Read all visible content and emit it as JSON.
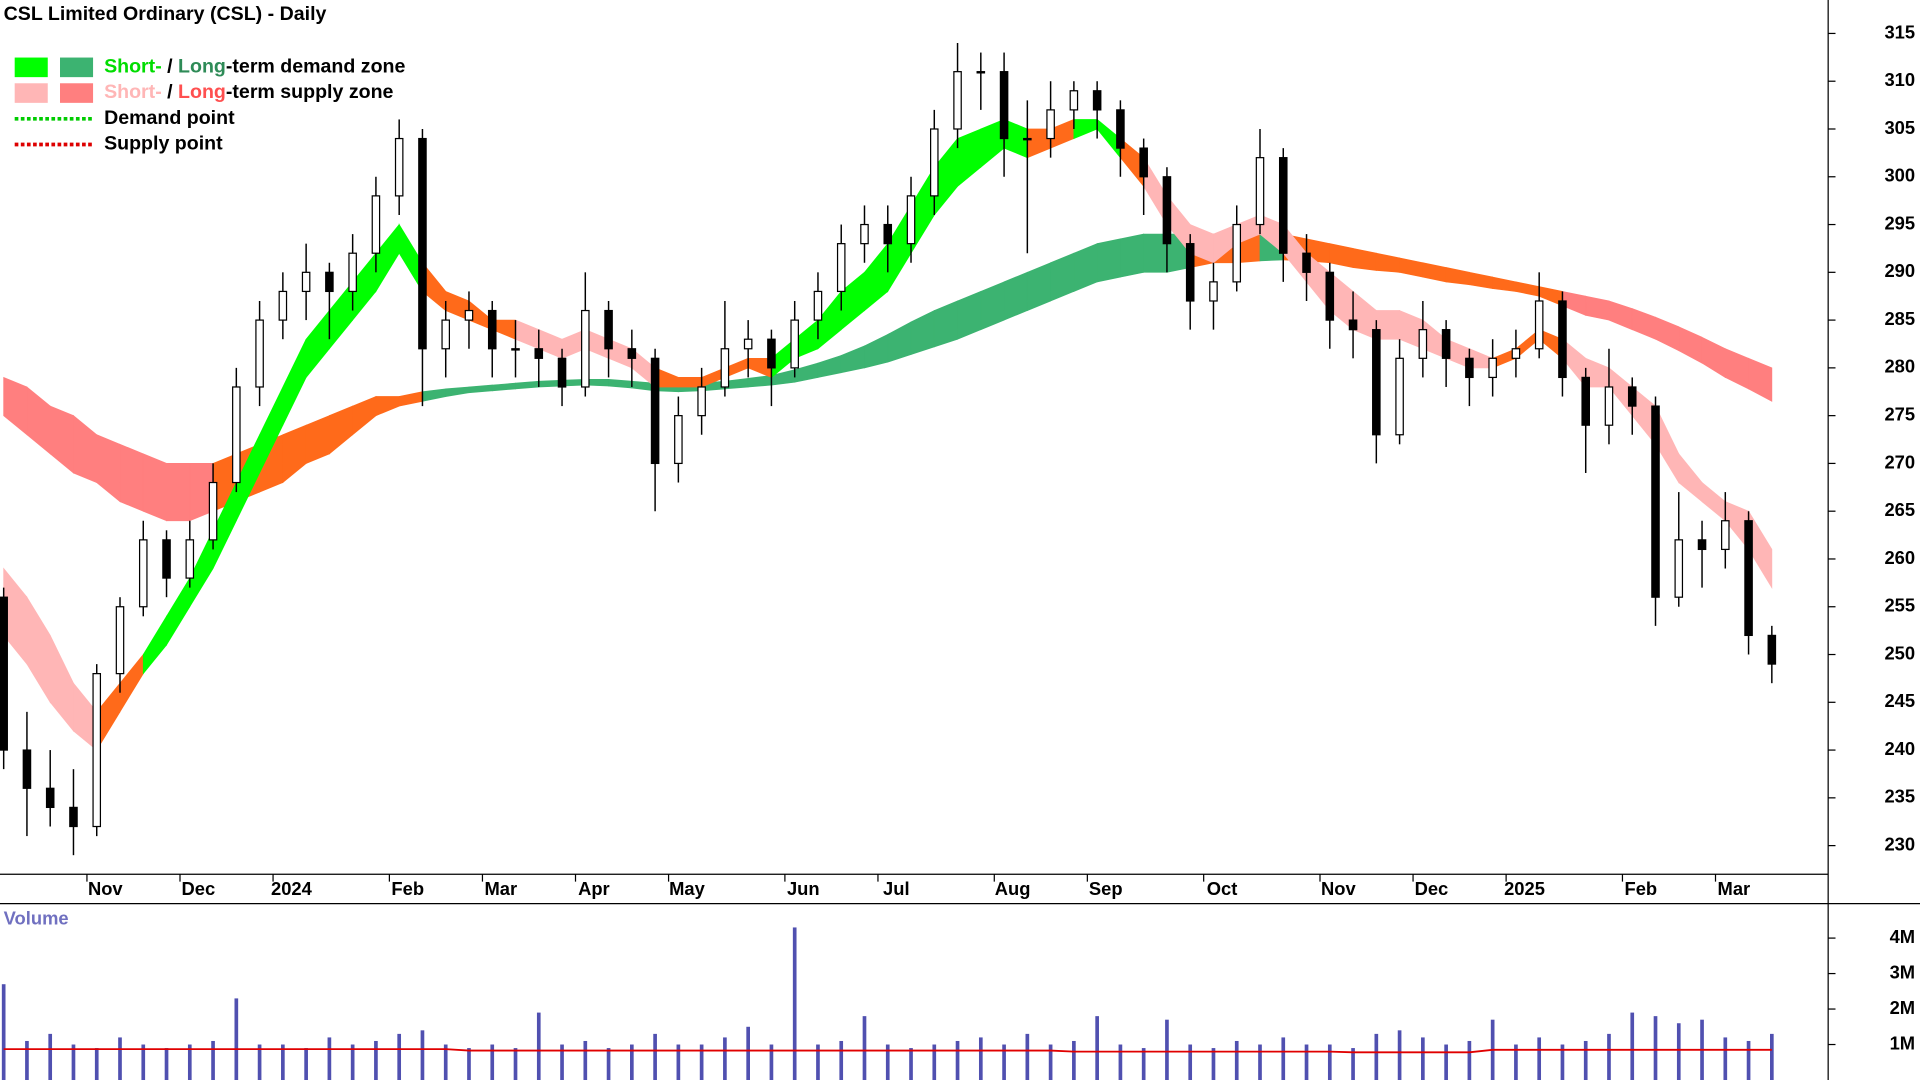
{
  "chart_data": {
    "type": "candlestick",
    "title": "CSL Limited Ordinary (CSL) - Daily",
    "categories": [
      null,
      null,
      null,
      null,
      "Nov",
      null,
      null,
      null,
      "Dec",
      null,
      null,
      null,
      "2024",
      null,
      null,
      null,
      null,
      "Feb",
      null,
      null,
      null,
      "Mar",
      null,
      null,
      null,
      "Apr",
      null,
      null,
      null,
      "May",
      null,
      null,
      null,
      null,
      "Jun",
      null,
      null,
      null,
      "Jul",
      null,
      null,
      null,
      null,
      "Aug",
      null,
      null,
      null,
      "Sep",
      null,
      null,
      null,
      null,
      "Oct",
      null,
      null,
      null,
      null,
      "Nov",
      null,
      null,
      null,
      "Dec",
      null,
      null,
      null,
      "2025",
      null,
      null,
      null,
      null,
      "Feb",
      null,
      null,
      null,
      "Mar",
      null,
      null
    ],
    "open": [
      256,
      240,
      236,
      234,
      232,
      248,
      255,
      262,
      258,
      262,
      268,
      278,
      285,
      288,
      290,
      288,
      292,
      298,
      304,
      282,
      285,
      286,
      282,
      282,
      281,
      278,
      286,
      282,
      281,
      270,
      275,
      278,
      282,
      283,
      280,
      285,
      288,
      293,
      295,
      293,
      298,
      305,
      311,
      311,
      304,
      304,
      307,
      309,
      307,
      303,
      300,
      293,
      287,
      289,
      295,
      302,
      292,
      290,
      285,
      284,
      273,
      281,
      284,
      281,
      279,
      281,
      282,
      287,
      279,
      274,
      278,
      276,
      256,
      262,
      261,
      264,
      252
    ],
    "high": [
      257,
      244,
      240,
      238,
      249,
      256,
      264,
      263,
      264,
      270,
      280,
      287,
      290,
      293,
      291,
      294,
      300,
      306,
      305,
      287,
      288,
      287,
      285,
      284,
      282,
      290,
      287,
      284,
      282,
      277,
      280,
      287,
      285,
      284,
      287,
      290,
      295,
      297,
      297,
      300,
      307,
      314,
      313,
      313,
      308,
      310,
      310,
      310,
      308,
      304,
      301,
      294,
      291,
      297,
      305,
      303,
      294,
      291,
      288,
      285,
      283,
      287,
      285,
      282,
      283,
      284,
      290,
      288,
      280,
      282,
      279,
      277,
      267,
      264,
      267,
      265,
      253
    ],
    "low": [
      238,
      231,
      232,
      229,
      231,
      246,
      254,
      256,
      257,
      261,
      267,
      276,
      283,
      285,
      283,
      286,
      290,
      296,
      276,
      279,
      282,
      279,
      279,
      278,
      276,
      277,
      279,
      278,
      265,
      268,
      273,
      277,
      279,
      276,
      279,
      283,
      286,
      291,
      290,
      291,
      296,
      303,
      307,
      300,
      292,
      302,
      305,
      304,
      300,
      296,
      290,
      284,
      284,
      288,
      294,
      289,
      287,
      282,
      281,
      270,
      272,
      279,
      278,
      276,
      277,
      279,
      281,
      277,
      269,
      272,
      273,
      253,
      255,
      257,
      259,
      250,
      247
    ],
    "close": [
      240,
      236,
      234,
      232,
      248,
      255,
      262,
      258,
      262,
      268,
      278,
      285,
      288,
      290,
      288,
      292,
      298,
      304,
      282,
      285,
      286,
      282,
      282,
      281,
      278,
      286,
      282,
      281,
      270,
      275,
      278,
      282,
      283,
      280,
      285,
      288,
      293,
      295,
      293,
      298,
      305,
      311,
      311,
      304,
      304,
      307,
      309,
      307,
      303,
      300,
      293,
      287,
      289,
      295,
      302,
      292,
      290,
      285,
      284,
      273,
      281,
      284,
      281,
      279,
      281,
      282,
      287,
      279,
      274,
      278,
      276,
      256,
      262,
      261,
      264,
      252,
      249
    ],
    "ylim": [
      227,
      318.5
    ],
    "yticks": [
      230,
      235,
      240,
      245,
      250,
      255,
      260,
      265,
      270,
      275,
      280,
      285,
      290,
      295,
      300,
      305,
      310,
      315
    ],
    "short_zone": {
      "upper": [
        259,
        256,
        252,
        247,
        244,
        247,
        250,
        254,
        258,
        263,
        268,
        273,
        278,
        283,
        286,
        289,
        292,
        295,
        291,
        288,
        287,
        285,
        285,
        284,
        283,
        284,
        283,
        282,
        280,
        279,
        279,
        280,
        281,
        281,
        283,
        285,
        288,
        290,
        293,
        297,
        301,
        304,
        305,
        306,
        305,
        305,
        306,
        306,
        304,
        302,
        298,
        295,
        294,
        295,
        296,
        295,
        292,
        290,
        288,
        286,
        286,
        285,
        283,
        282,
        281,
        282,
        284,
        283,
        281,
        280,
        278,
        276,
        271,
        268,
        266,
        265,
        261
      ],
      "lower": [
        252,
        249,
        245,
        242,
        240,
        244,
        248,
        251,
        255,
        259,
        264,
        269,
        274,
        279,
        282,
        285,
        288,
        292,
        288,
        286,
        285,
        284,
        283,
        282,
        281,
        282,
        281,
        280,
        278,
        278,
        278,
        279,
        280,
        279,
        281,
        282,
        284,
        286,
        288,
        292,
        296,
        299,
        301,
        303,
        302,
        303,
        304,
        305,
        302,
        299,
        295,
        292,
        291,
        293,
        294,
        292,
        289,
        286,
        284,
        283,
        283,
        282,
        281,
        280,
        280,
        281,
        283,
        281,
        278,
        278,
        275,
        272,
        268,
        266,
        264,
        261,
        257
      ],
      "state": [
        "supply",
        "supply",
        "supply",
        "supply",
        "transition",
        "transition",
        "demand",
        "demand",
        "demand",
        "demand",
        "demand",
        "demand",
        "demand",
        "demand",
        "demand",
        "demand",
        "demand",
        "demand",
        "transition",
        "transition",
        "transition",
        "transition",
        "supply",
        "supply",
        "supply",
        "supply",
        "supply",
        "supply",
        "transition",
        "transition",
        "transition",
        "transition",
        "transition",
        "demand",
        "demand",
        "demand",
        "demand",
        "demand",
        "demand",
        "demand",
        "demand",
        "demand",
        "demand",
        "demand",
        "transition",
        "transition",
        "demand",
        "demand",
        "transition",
        "supply",
        "supply",
        "supply",
        "supply",
        "supply",
        "supply",
        "supply",
        "supply",
        "supply",
        "supply",
        "supply",
        "supply",
        "supply",
        "supply",
        "supply",
        "transition",
        "transition",
        "transition",
        "supply",
        "supply",
        "supply",
        "supply",
        "supply",
        "supply",
        "supply",
        "supply",
        "supply",
        "supply"
      ]
    },
    "long_zone": {
      "upper": [
        279,
        278,
        276,
        275,
        273,
        272,
        271,
        270,
        270,
        270,
        271,
        272,
        273,
        274,
        275,
        276,
        277,
        277,
        277.5,
        277.8,
        278,
        278.2,
        278.4,
        278.6,
        278.7,
        278.8,
        278.8,
        278.6,
        278.4,
        278.3,
        278.4,
        278.6,
        278.9,
        279.2,
        279.8,
        280.5,
        281.3,
        282.3,
        283.5,
        284.8,
        286,
        287,
        288,
        289,
        290,
        291,
        292,
        293,
        293.5,
        294,
        294,
        294,
        294,
        294.2,
        294.2,
        294,
        293.5,
        293,
        292.5,
        292,
        291.5,
        291,
        290.5,
        290,
        289.5,
        289,
        288.5,
        288,
        287.5,
        287,
        286.2,
        285.3,
        284.3,
        283.2,
        282,
        281,
        280
      ],
      "lower": [
        275,
        273,
        271,
        269,
        268,
        266,
        265,
        264,
        264,
        265,
        266,
        267,
        268,
        270,
        271,
        273,
        275,
        276,
        276.5,
        277,
        277.4,
        277.6,
        277.8,
        278,
        278.1,
        278.2,
        278.1,
        277.9,
        277.6,
        277.5,
        277.6,
        277.8,
        278,
        278.2,
        278.5,
        279,
        279.5,
        280,
        280.6,
        281.4,
        282.2,
        283,
        284,
        285,
        286,
        287,
        288,
        289,
        289.5,
        290,
        290,
        290.5,
        291,
        291,
        291.2,
        291.3,
        291.2,
        291,
        290.5,
        290.2,
        290,
        289.5,
        289,
        288.7,
        288.3,
        288,
        287.5,
        286.5,
        285.5,
        285,
        284,
        283,
        281.8,
        280.5,
        279,
        277.8,
        276.5
      ],
      "state": [
        "supply",
        "supply",
        "supply",
        "supply",
        "supply",
        "supply",
        "supply",
        "supply",
        "supply",
        "transition",
        "transition",
        "transition",
        "transition",
        "transition",
        "transition",
        "transition",
        "transition",
        "transition",
        "demand",
        "demand",
        "demand",
        "demand",
        "demand",
        "demand",
        "demand",
        "demand",
        "demand",
        "demand",
        "demand",
        "demand",
        "demand",
        "demand",
        "demand",
        "demand",
        "demand",
        "demand",
        "demand",
        "demand",
        "demand",
        "demand",
        "demand",
        "demand",
        "demand",
        "demand",
        "demand",
        "demand",
        "demand",
        "demand",
        "demand",
        "demand",
        "demand",
        "transition",
        "transition",
        "transition",
        "demand",
        "transition",
        "transition",
        "transition",
        "transition",
        "transition",
        "transition",
        "transition",
        "transition",
        "transition",
        "transition",
        "transition",
        "transition",
        "supply",
        "supply",
        "supply",
        "supply",
        "supply",
        "supply",
        "supply",
        "supply",
        "supply",
        "supply"
      ]
    },
    "zone_colors": {
      "short": {
        "demand": "#00ff00",
        "supply": "#ffb6b6",
        "transition": "#ff6a1a"
      },
      "long": {
        "demand": "#3cb371",
        "supply": "#ff7f7f",
        "transition": "#ff6a1a"
      }
    },
    "legend": [
      {
        "swatches": [
          "#00ff00",
          "#3cb371"
        ],
        "parts": [
          {
            "text": "Short-",
            "color": "#00dd00"
          },
          {
            "text": " / ",
            "color": "#000000"
          },
          {
            "text": "Long",
            "color": "#2e8b57"
          },
          {
            "text": "-term demand zone",
            "color": "#000000"
          }
        ]
      },
      {
        "swatches": [
          "#ffb6b6",
          "#ff7f7f"
        ],
        "parts": [
          {
            "text": "Short-",
            "color": "#ffb6b6"
          },
          {
            "text": " / ",
            "color": "#000000"
          },
          {
            "text": "Long",
            "color": "#ff5050"
          },
          {
            "text": "-term supply zone",
            "color": "#000000"
          }
        ]
      },
      {
        "dotted": "#00cc00",
        "parts": [
          {
            "text": "Demand point",
            "color": "#000000"
          }
        ]
      },
      {
        "dotted": "#dd0000",
        "parts": [
          {
            "text": "Supply point",
            "color": "#000000"
          }
        ]
      }
    ],
    "volume": {
      "label": "Volume",
      "color": "#5050b0",
      "average_color": "#e00000",
      "values": [
        2700000,
        1100000,
        1300000,
        1000000,
        900000,
        1200000,
        1000000,
        900000,
        1000000,
        1100000,
        2300000,
        1000000,
        1000000,
        900000,
        1200000,
        1000000,
        1100000,
        1300000,
        1400000,
        1000000,
        900000,
        1000000,
        900000,
        1900000,
        1000000,
        1100000,
        900000,
        1000000,
        1300000,
        1000000,
        1000000,
        1200000,
        1500000,
        1000000,
        4300000,
        1000000,
        1100000,
        1800000,
        1000000,
        900000,
        1000000,
        1100000,
        1200000,
        1000000,
        1300000,
        1000000,
        1100000,
        1800000,
        1000000,
        900000,
        1700000,
        1000000,
        900000,
        1100000,
        1000000,
        1200000,
        1000000,
        1000000,
        900000,
        1300000,
        1400000,
        1200000,
        1000000,
        1100000,
        1700000,
        1000000,
        1200000,
        1000000,
        1100000,
        1300000,
        1900000,
        1800000,
        1600000,
        1700000,
        1200000,
        1100000,
        1300000
      ],
      "average": [
        870000,
        870000,
        870000,
        870000,
        870000,
        870000,
        870000,
        870000,
        870000,
        870000,
        870000,
        870000,
        870000,
        870000,
        870000,
        870000,
        870000,
        870000,
        870000,
        870000,
        830000,
        830000,
        830000,
        830000,
        830000,
        830000,
        830000,
        830000,
        830000,
        830000,
        830000,
        830000,
        830000,
        830000,
        830000,
        830000,
        830000,
        830000,
        830000,
        830000,
        830000,
        830000,
        830000,
        830000,
        830000,
        830000,
        800000,
        800000,
        800000,
        800000,
        800000,
        800000,
        800000,
        800000,
        800000,
        800000,
        800000,
        800000,
        780000,
        780000,
        780000,
        780000,
        780000,
        780000,
        850000,
        850000,
        850000,
        850000,
        850000,
        850000,
        850000,
        850000,
        850000,
        850000,
        850000,
        850000,
        850000
      ],
      "ylim": [
        0,
        4970000
      ],
      "yticks": [
        {
          "value": 1000000,
          "label": "1M"
        },
        {
          "value": 2000000,
          "label": "2M"
        },
        {
          "value": 3000000,
          "label": "3M"
        },
        {
          "value": 4000000,
          "label": "4M"
        }
      ]
    }
  }
}
